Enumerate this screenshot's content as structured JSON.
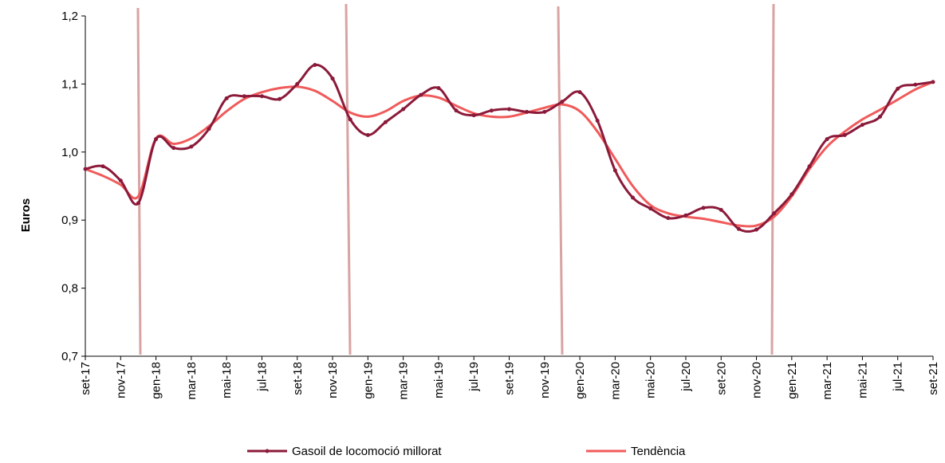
{
  "chart_data": {
    "type": "line",
    "y_label": "Euros",
    "categories": [
      "set-17",
      null,
      "nov-17",
      null,
      "gen-18",
      null,
      "mar-18",
      null,
      "mai-18",
      null,
      "jul-18",
      null,
      "set-18",
      null,
      "nov-18",
      null,
      "gen-19",
      null,
      "mar-19",
      null,
      "mai-19",
      null,
      "jul-19",
      null,
      "set-19",
      null,
      "nov-19",
      null,
      "gen-20",
      null,
      "mar-20",
      null,
      "mai-20",
      null,
      "jul-20",
      null,
      "set-20",
      null,
      "nov-20",
      null,
      "gen-21",
      null,
      "mar-21",
      null,
      "mai-21",
      null,
      "jul-21",
      null,
      "set-21"
    ],
    "series": [
      {
        "name": "Gasoil de locomoció millorat",
        "color": "#8b1a3a",
        "markers": true,
        "values": [
          0.975,
          0.979,
          0.958,
          0.925,
          1.019,
          1.006,
          1.008,
          1.034,
          1.079,
          1.082,
          1.082,
          1.078,
          1.1,
          1.128,
          1.108,
          1.048,
          1.025,
          1.044,
          1.063,
          1.084,
          1.094,
          1.061,
          1.054,
          1.061,
          1.063,
          1.059,
          1.059,
          1.074,
          1.088,
          1.046,
          0.973,
          0.933,
          0.917,
          0.903,
          0.907,
          0.918,
          0.915,
          0.887,
          0.886,
          0.91,
          0.938,
          0.979,
          1.019,
          1.025,
          1.04,
          1.052,
          1.093,
          1.099,
          1.103
        ]
      },
      {
        "name": "Tendència",
        "color": "#f05a5a",
        "markers": false,
        "values": [
          0.975,
          0.965,
          0.952,
          0.935,
          1.02,
          1.012,
          1.02,
          1.038,
          1.06,
          1.078,
          1.088,
          1.094,
          1.096,
          1.09,
          1.075,
          1.058,
          1.052,
          1.06,
          1.075,
          1.083,
          1.08,
          1.068,
          1.057,
          1.052,
          1.052,
          1.058,
          1.065,
          1.07,
          1.06,
          1.03,
          0.99,
          0.95,
          0.922,
          0.91,
          0.905,
          0.902,
          0.897,
          0.892,
          0.892,
          0.905,
          0.935,
          0.975,
          1.008,
          1.03,
          1.048,
          1.062,
          1.077,
          1.092,
          1.103
        ]
      }
    ],
    "ylim": [
      0.7,
      1.2
    ],
    "yticks": [
      {
        "value": 0.7,
        "label": "0,7"
      },
      {
        "value": 0.8,
        "label": "0,8"
      },
      {
        "value": 0.9,
        "label": "0,9"
      },
      {
        "value": 1.0,
        "label": "1,0"
      },
      {
        "value": 1.1,
        "label": "1,1"
      },
      {
        "value": 1.2,
        "label": "1,2"
      }
    ],
    "legend": "bottom"
  }
}
